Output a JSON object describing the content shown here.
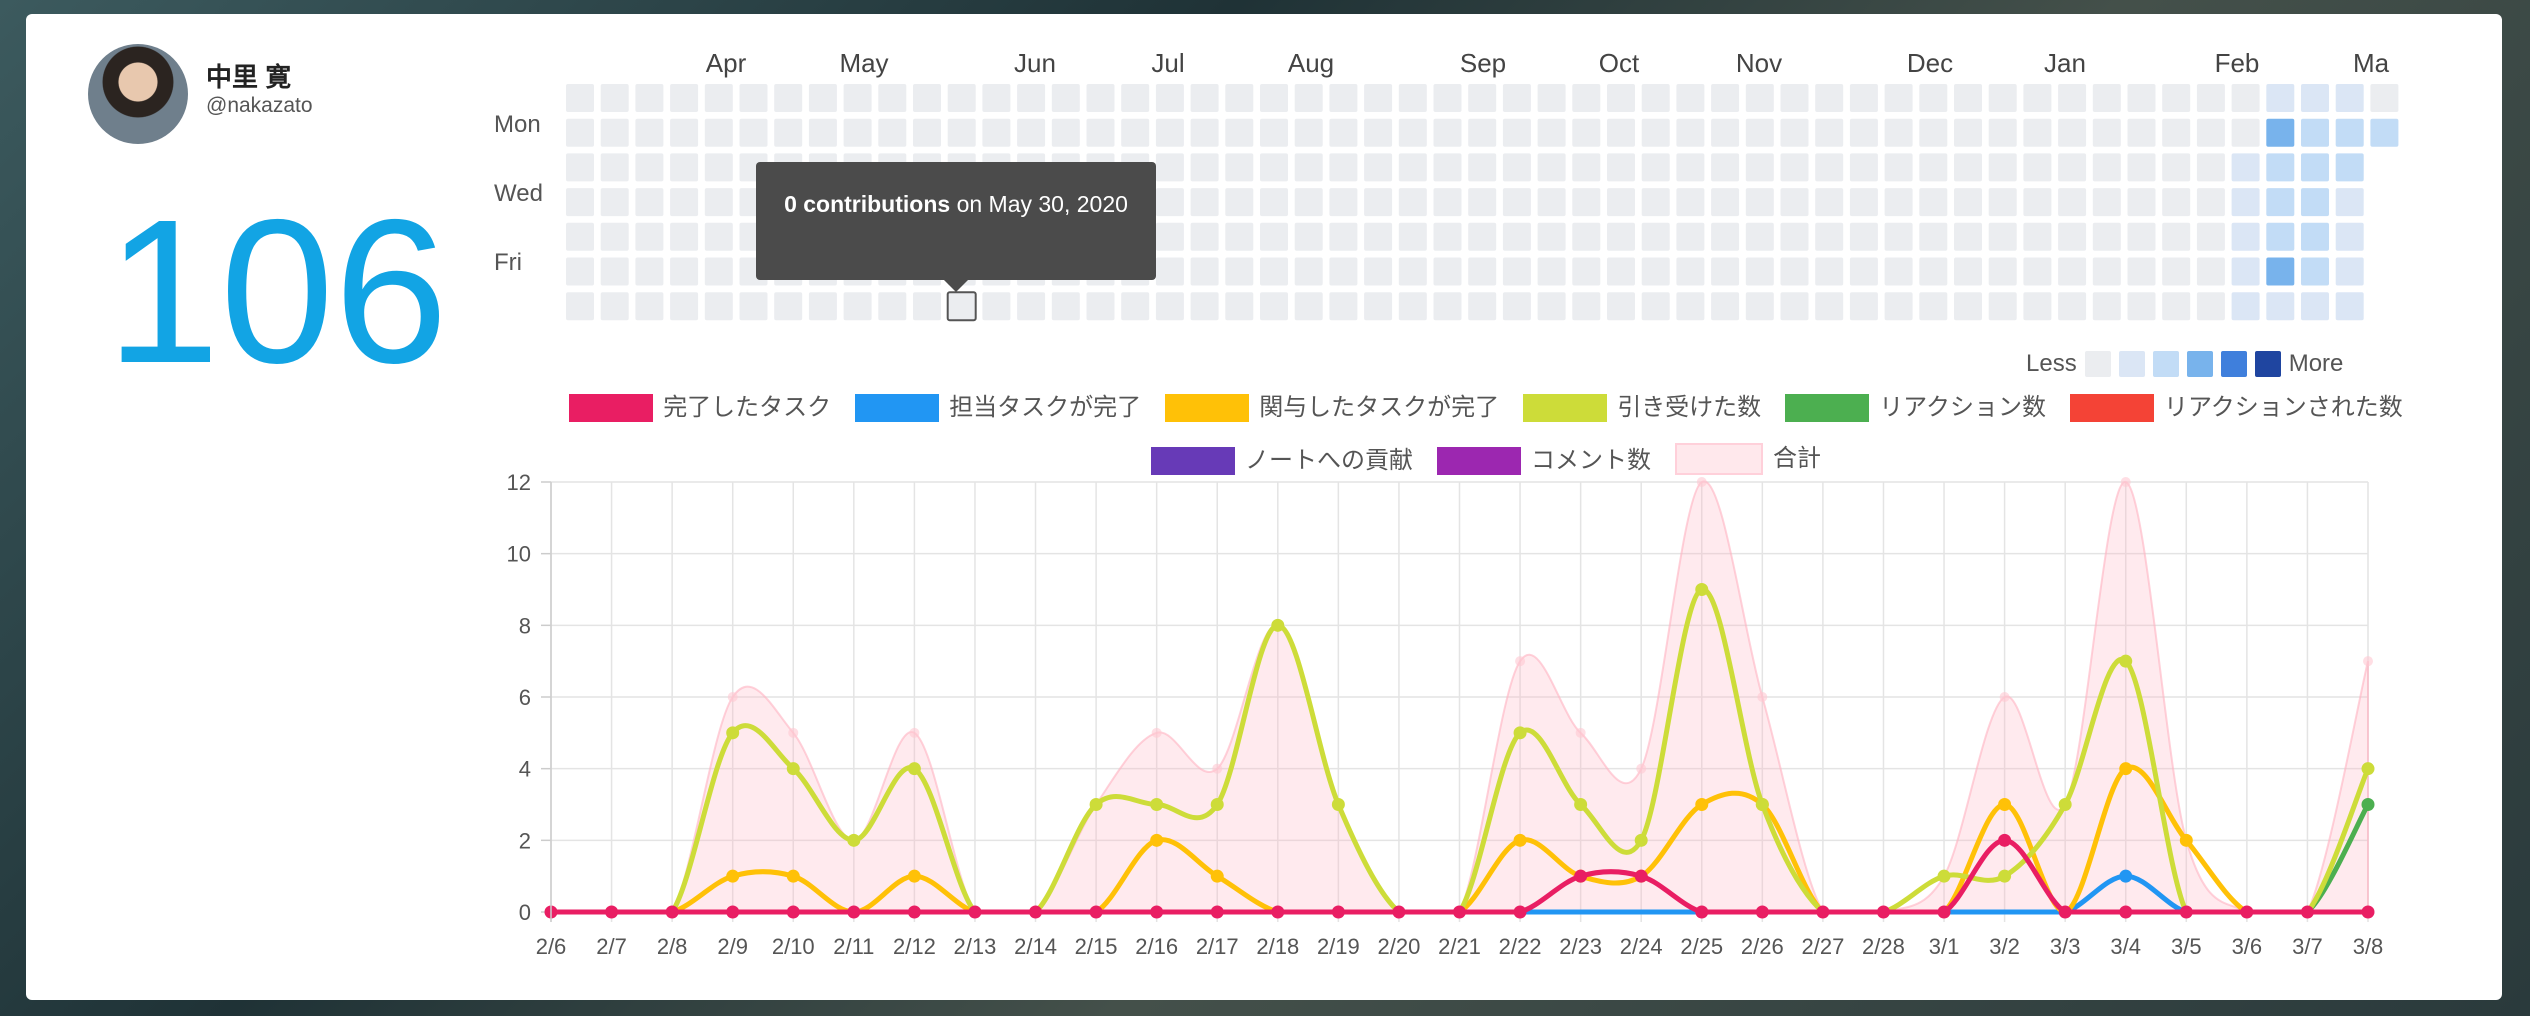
{
  "profile": {
    "name": "中里 寛",
    "handle": "@nakazato",
    "total": "106"
  },
  "heatmap": {
    "months": [
      "Apr",
      "May",
      "Jun",
      "Jul",
      "Aug",
      "Sep",
      "Oct",
      "Nov",
      "Dec",
      "Jan",
      "Feb",
      "Ma"
    ],
    "day_labels": [
      "Mon",
      "Wed",
      "Fri"
    ],
    "tooltip": {
      "count": "0 contributions",
      "rest": "on May 30, 2020"
    },
    "legend_less": "Less",
    "legend_more": "More",
    "scale_colors": [
      "#ebedf0",
      "#dbe6f5",
      "#c2dcf6",
      "#78b3ec",
      "#3f7fdc",
      "#1f45a0"
    ]
  },
  "chart_data": {
    "type": "line",
    "categories": [
      "2/6",
      "2/7",
      "2/8",
      "2/9",
      "2/10",
      "2/11",
      "2/12",
      "2/13",
      "2/14",
      "2/15",
      "2/16",
      "2/17",
      "2/18",
      "2/19",
      "2/20",
      "2/21",
      "2/22",
      "2/23",
      "2/24",
      "2/25",
      "2/26",
      "2/27",
      "2/28",
      "3/1",
      "3/2",
      "3/3",
      "3/4",
      "3/5",
      "3/6",
      "3/7",
      "3/8"
    ],
    "ylim": [
      0,
      12
    ],
    "yticks": [
      "0",
      "2",
      "4",
      "6",
      "8",
      "10",
      "12"
    ],
    "grid": true,
    "legend_position": "top",
    "series": [
      {
        "name": "合計",
        "color": "#ffb3c1",
        "fill": true,
        "values": [
          0,
          0,
          0,
          6,
          5,
          2,
          5,
          0,
          0,
          3,
          5,
          4,
          8,
          3,
          0,
          0,
          7,
          5,
          4,
          12,
          6,
          0,
          0,
          1,
          6,
          3,
          12,
          2,
          0,
          0,
          7
        ]
      },
      {
        "name": "完了したタスク",
        "color": "#e91e63",
        "values": [
          0,
          0,
          0,
          0,
          0,
          0,
          0,
          0,
          0,
          0,
          0,
          0,
          0,
          0,
          0,
          0,
          0,
          1,
          1,
          0,
          0,
          0,
          0,
          0,
          2,
          0,
          0,
          0,
          0,
          0,
          0
        ]
      },
      {
        "name": "担当タスクが完了",
        "color": "#2196f3",
        "values": [
          0,
          0,
          0,
          0,
          0,
          0,
          0,
          0,
          0,
          0,
          0,
          0,
          0,
          0,
          0,
          0,
          0,
          0,
          0,
          0,
          0,
          0,
          0,
          0,
          0,
          0,
          1,
          0,
          0,
          0,
          0
        ]
      },
      {
        "name": "関与したタスクが完了",
        "color": "#ffc107",
        "values": [
          0,
          0,
          0,
          1,
          1,
          0,
          1,
          0,
          0,
          0,
          2,
          1,
          0,
          0,
          0,
          0,
          2,
          1,
          1,
          3,
          3,
          0,
          0,
          0,
          3,
          0,
          4,
          2,
          0,
          0,
          0
        ]
      },
      {
        "name": "引き受けた数",
        "color": "#cddc39",
        "values": [
          0,
          0,
          0,
          5,
          4,
          2,
          4,
          0,
          0,
          3,
          3,
          3,
          8,
          3,
          0,
          0,
          5,
          3,
          2,
          9,
          3,
          0,
          0,
          1,
          1,
          3,
          7,
          0,
          0,
          0,
          4
        ]
      },
      {
        "name": "リアクション数",
        "color": "#4caf50",
        "values": [
          0,
          0,
          0,
          0,
          0,
          0,
          0,
          0,
          0,
          0,
          0,
          0,
          0,
          0,
          0,
          0,
          0,
          0,
          0,
          0,
          0,
          0,
          0,
          0,
          0,
          0,
          0,
          0,
          0,
          0,
          3
        ]
      },
      {
        "name": "リアクションされた数",
        "color": "#f44336",
        "values": [
          0,
          0,
          0,
          0,
          0,
          0,
          0,
          0,
          0,
          0,
          0,
          0,
          0,
          0,
          0,
          0,
          0,
          0,
          0,
          0,
          0,
          0,
          0,
          0,
          0,
          0,
          0,
          0,
          0,
          0,
          0
        ]
      },
      {
        "name": "ノートへの貢献",
        "color": "#673ab7",
        "values": [
          0,
          0,
          0,
          0,
          0,
          0,
          0,
          0,
          0,
          0,
          0,
          0,
          0,
          0,
          0,
          0,
          0,
          0,
          0,
          0,
          0,
          0,
          0,
          0,
          0,
          0,
          0,
          0,
          0,
          0,
          0
        ]
      },
      {
        "name": "コメント数",
        "color": "#9c27b0",
        "values": [
          0,
          0,
          0,
          0,
          0,
          0,
          0,
          0,
          0,
          0,
          0,
          0,
          0,
          0,
          0,
          0,
          0,
          0,
          0,
          0,
          0,
          0,
          0,
          0,
          0,
          0,
          0,
          0,
          0,
          0,
          0
        ]
      }
    ],
    "legend_order": [
      "完了したタスク",
      "担当タスクが完了",
      "関与したタスクが完了",
      "引き受けた数",
      "リアクション数",
      "リアクションされた数",
      "ノートへの貢献",
      "コメント数",
      "合計"
    ]
  }
}
